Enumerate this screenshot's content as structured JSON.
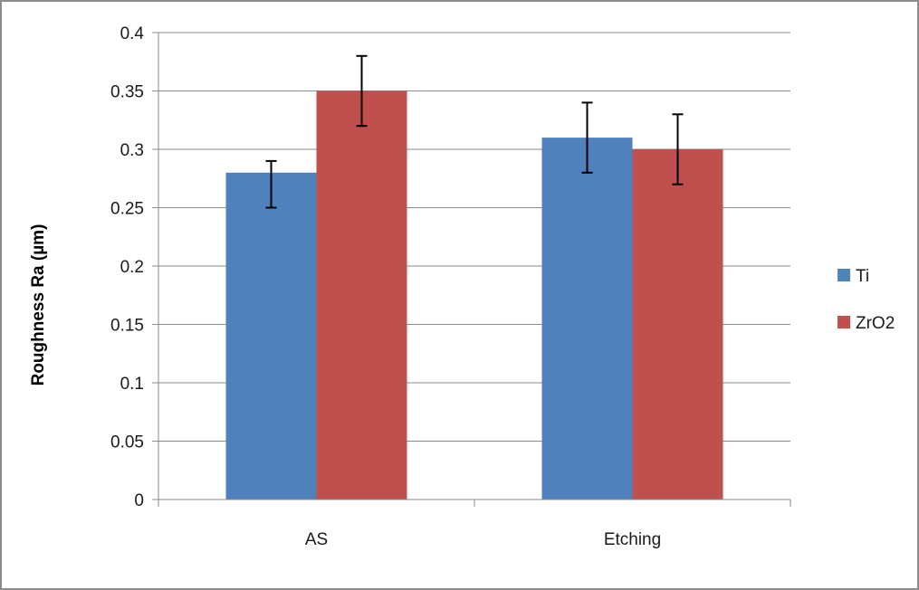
{
  "chart_data": {
    "type": "bar",
    "title": "",
    "xlabel": "",
    "ylabel": "Roughness Ra (µm)",
    "categories": [
      "AS",
      "Etching"
    ],
    "series": [
      {
        "name": "Ti",
        "color": "#4f81bd",
        "values": [
          0.28,
          0.31
        ],
        "errors": [
          [
            0.25,
            0.29
          ],
          [
            0.28,
            0.34
          ]
        ]
      },
      {
        "name": "ZrO2",
        "color": "#c0504d",
        "values": [
          0.35,
          0.3
        ],
        "errors": [
          [
            0.32,
            0.38
          ],
          [
            0.27,
            0.33
          ]
        ]
      }
    ],
    "ylim": [
      0,
      0.4
    ],
    "yticks": [
      "0",
      "0.05",
      "0.1",
      "0.15",
      "0.2",
      "0.25",
      "0.3",
      "0.35",
      "0.4"
    ],
    "grid": true,
    "legend_position": "right"
  }
}
